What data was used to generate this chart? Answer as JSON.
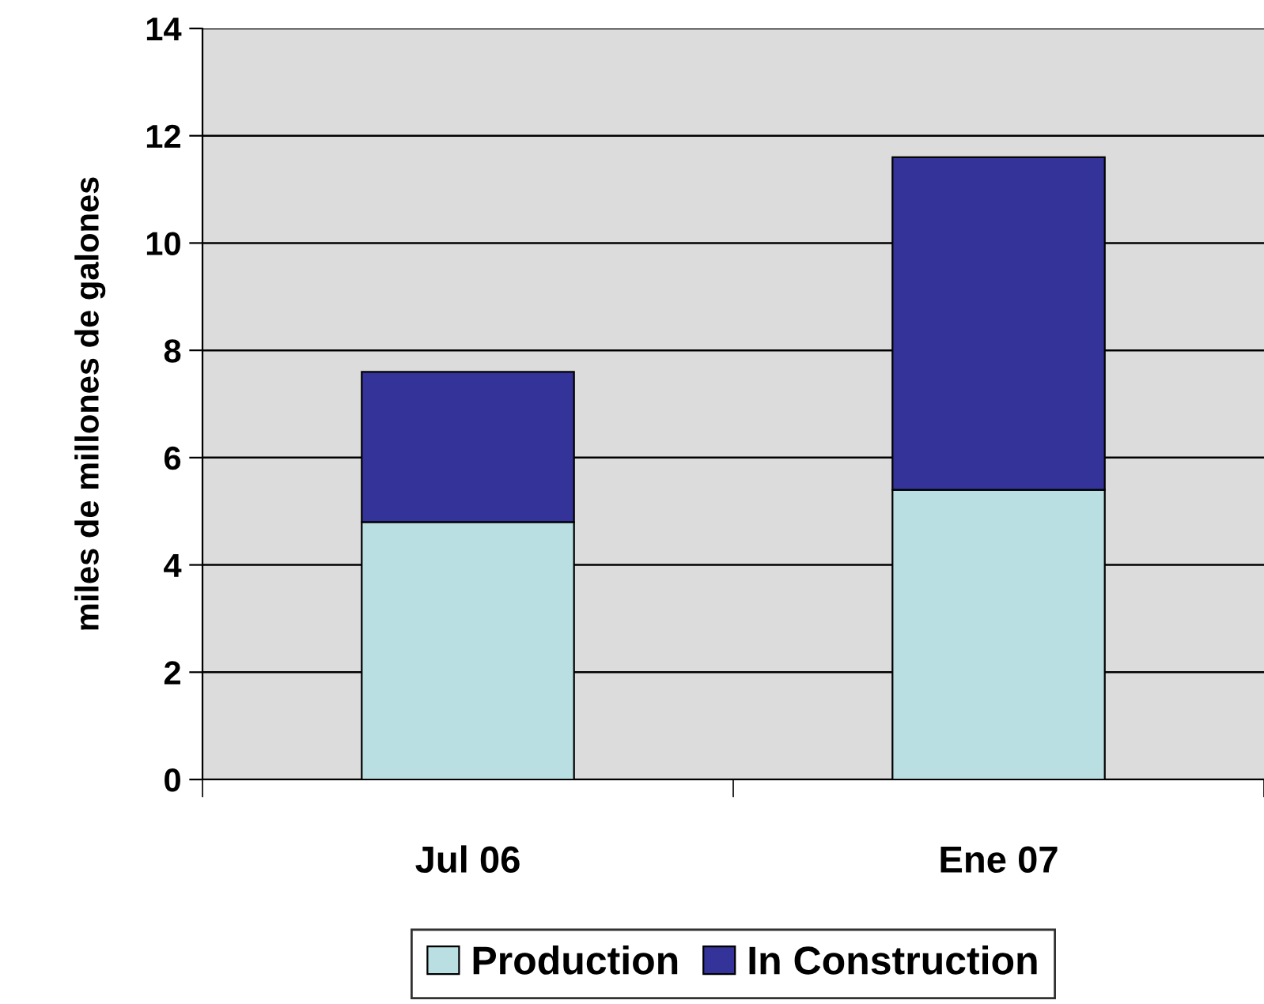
{
  "chart_data": {
    "type": "bar",
    "stacked": true,
    "ylabel": "miles de millones de galones",
    "categories": [
      "Jul 06",
      "Ene 07"
    ],
    "series": [
      {
        "name": "Production",
        "color": "#b9dfe2",
        "values": [
          4.8,
          5.4
        ]
      },
      {
        "name": "In Construction",
        "color": "#333399",
        "values": [
          2.8,
          6.2
        ]
      }
    ],
    "ylim": [
      0,
      14
    ],
    "yticks": [
      0,
      2,
      4,
      6,
      8,
      10,
      12,
      14
    ],
    "grid": "y",
    "legend": "bottom"
  }
}
